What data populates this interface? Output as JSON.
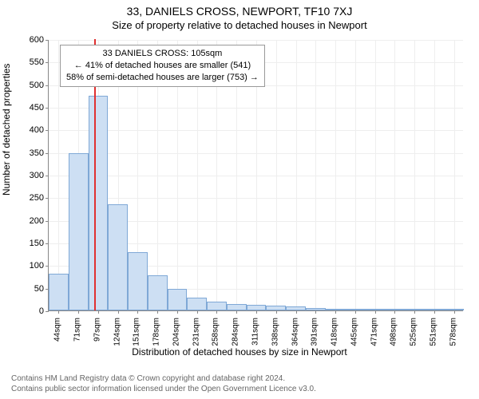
{
  "title_main": "33, DANIELS CROSS, NEWPORT, TF10 7XJ",
  "title_sub": "Size of property relative to detached houses in Newport",
  "chart": {
    "type": "histogram",
    "ylabel": "Number of detached properties",
    "xlabel": "Distribution of detached houses by size in Newport",
    "ylim_max": 600,
    "ytick_step": 50,
    "yticks": [
      0,
      50,
      100,
      150,
      200,
      250,
      300,
      350,
      400,
      450,
      500,
      550,
      600
    ],
    "x_categories": [
      "44sqm",
      "71sqm",
      "97sqm",
      "124sqm",
      "151sqm",
      "178sqm",
      "204sqm",
      "231sqm",
      "258sqm",
      "284sqm",
      "311sqm",
      "338sqm",
      "364sqm",
      "391sqm",
      "418sqm",
      "445sqm",
      "471sqm",
      "498sqm",
      "525sqm",
      "551sqm",
      "578sqm"
    ],
    "values": [
      82,
      347,
      475,
      235,
      128,
      78,
      48,
      28,
      20,
      14,
      12,
      10,
      8,
      6,
      4,
      3,
      3,
      2,
      2,
      2,
      1
    ],
    "bar_fill": "#cddff3",
    "bar_border": "#7fa8d6",
    "grid_color": "#eeeeee",
    "background_color": "#ffffff",
    "marker": {
      "x_index_after": 2,
      "fraction_into_next": 0.3,
      "color": "#e03030"
    },
    "annotation": {
      "line1": "33 DANIELS CROSS: 105sqm",
      "line2": "← 41% of detached houses are smaller (541)",
      "line3": "58% of semi-detached houses are larger (753) →"
    }
  },
  "attribution": {
    "line1": "Contains HM Land Registry data © Crown copyright and database right 2024.",
    "line2": "Contains public sector information licensed under the Open Government Licence v3.0."
  }
}
